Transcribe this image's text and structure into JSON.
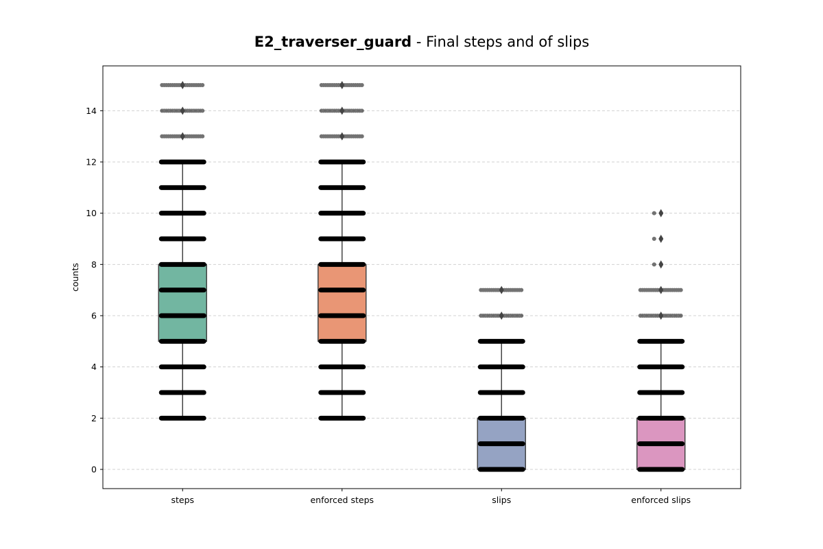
{
  "chart_data": {
    "type": "box",
    "title_bold": "E2_traverser_guard",
    "title_rest": " - Final steps and of slips",
    "xlabel": "",
    "ylabel": "counts",
    "ylim": [
      -0.75,
      15.75
    ],
    "yticks": [
      0,
      2,
      4,
      6,
      8,
      10,
      12,
      14
    ],
    "grid": "horizontal dashed",
    "categories": [
      "steps",
      "enforced steps",
      "slips",
      "enforced slips"
    ],
    "boxes": [
      {
        "name": "steps",
        "color": "#72b6a1",
        "whisker_low": 2,
        "q1": 5,
        "median": 6,
        "q3": 8,
        "whisker_high": 12,
        "fliers": [
          13,
          14,
          15
        ],
        "point_values": [
          2,
          3,
          4,
          5,
          6,
          7,
          8,
          9,
          10,
          11,
          12,
          13,
          14,
          15
        ]
      },
      {
        "name": "enforced steps",
        "color": "#e99675",
        "whisker_low": 2,
        "q1": 5,
        "median": 6,
        "q3": 8,
        "whisker_high": 12,
        "fliers": [
          13,
          14,
          15
        ],
        "point_values": [
          2,
          3,
          4,
          5,
          6,
          7,
          8,
          9,
          10,
          11,
          12,
          13,
          14,
          15
        ]
      },
      {
        "name": "slips",
        "color": "#95a3c3",
        "whisker_low": 0,
        "q1": 0,
        "median": 1,
        "q3": 2,
        "whisker_high": 5,
        "fliers": [
          6,
          7
        ],
        "point_values": [
          0,
          1,
          2,
          3,
          4,
          5,
          6,
          7
        ]
      },
      {
        "name": "enforced slips",
        "color": "#db96c0",
        "whisker_low": 0,
        "q1": 0,
        "median": 1,
        "q3": 2,
        "whisker_high": 5,
        "fliers": [
          6,
          7,
          8,
          9,
          10
        ],
        "point_values": [
          0,
          1,
          2,
          3,
          4,
          5,
          6,
          7,
          8,
          9,
          10
        ]
      }
    ]
  }
}
